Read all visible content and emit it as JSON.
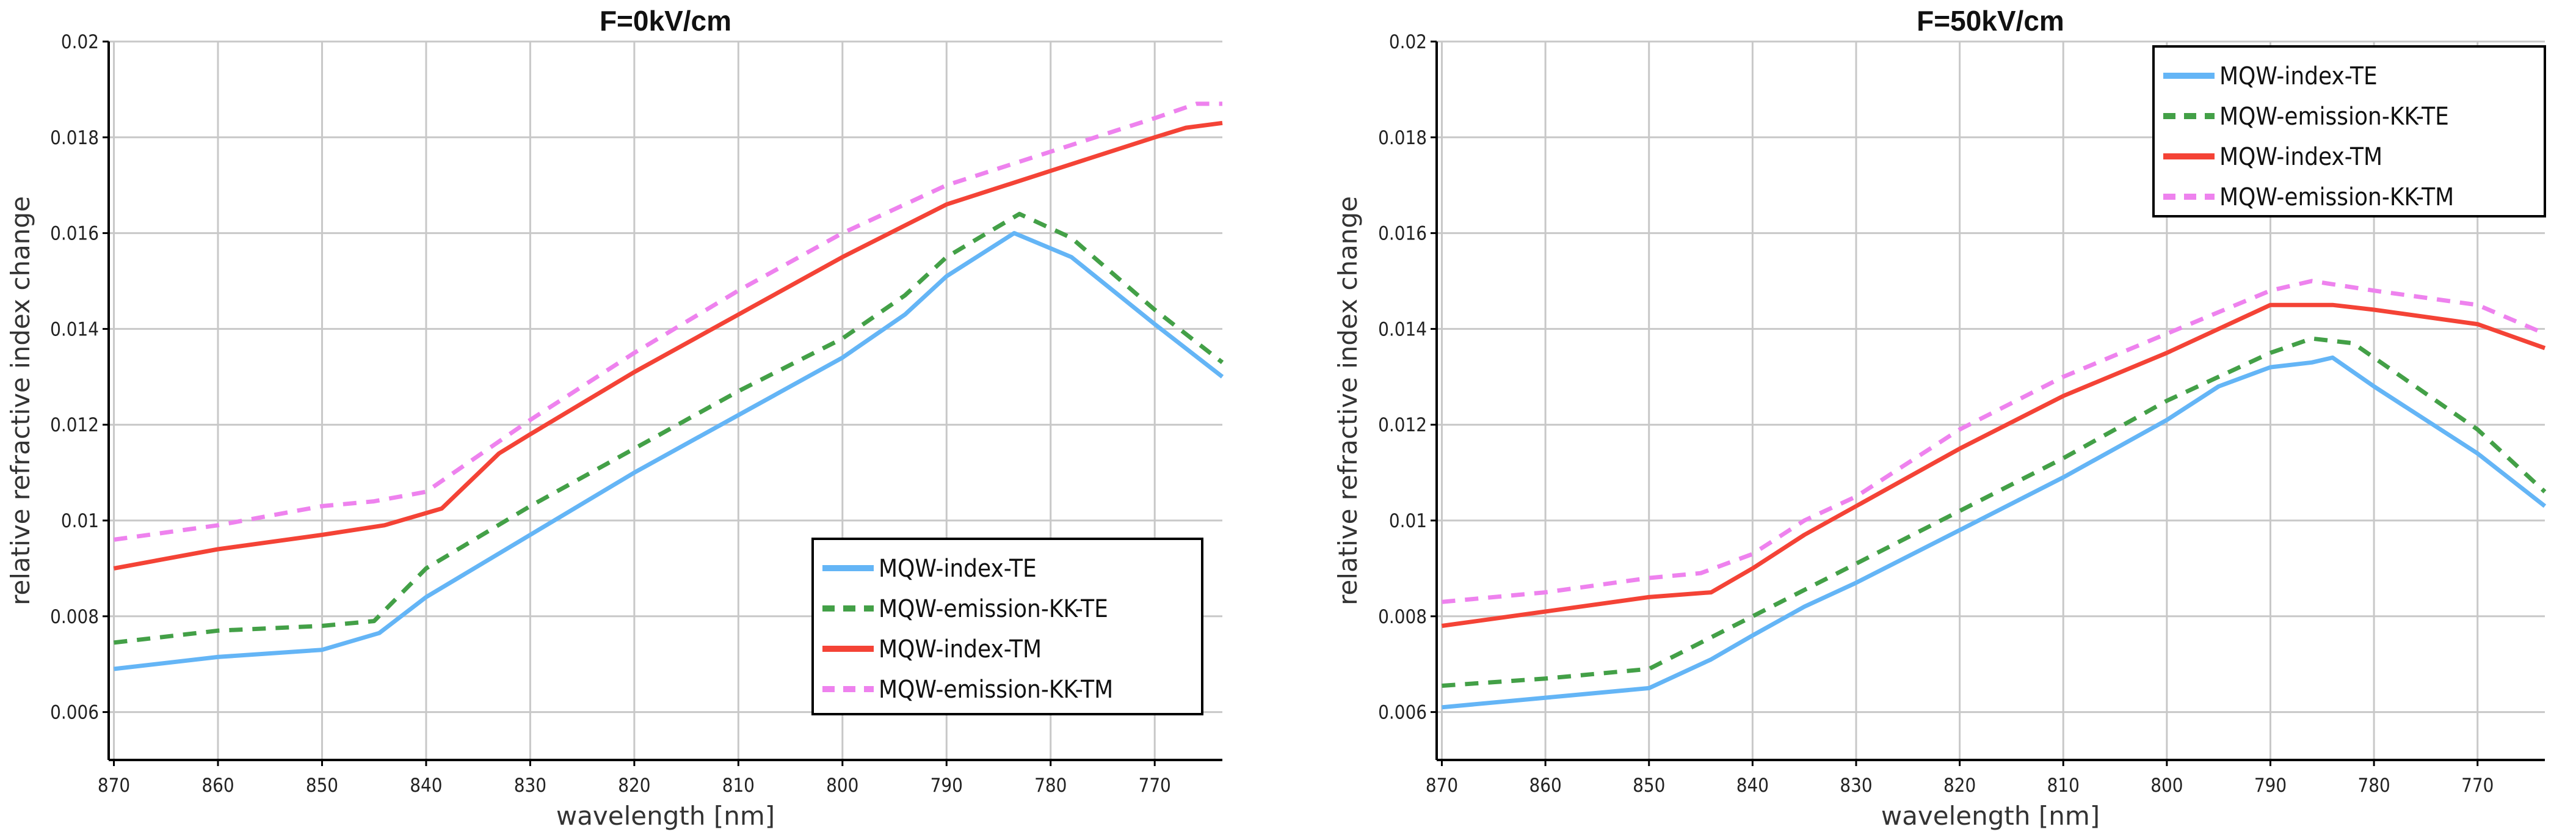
{
  "series_styles": [
    {
      "name": "MQW-index-TE",
      "color": "#64b5f6",
      "dashed": false
    },
    {
      "name": "MQW-emission-KK-TE",
      "color": "#43a047",
      "dashed": true
    },
    {
      "name": "MQW-index-TM",
      "color": "#f44336",
      "dashed": false
    },
    {
      "name": "MQW-emission-KK-TM",
      "color": "#ee82ee",
      "dashed": true
    }
  ],
  "chart_data": [
    {
      "type": "line",
      "title": "F=0kV/cm",
      "xlabel": "wavelength [nm]",
      "ylabel": "relative refractive index change",
      "xlim": [
        870.5,
        763.5
      ],
      "ylim": [
        0.005,
        0.02
      ],
      "x_reversed": true,
      "xticks": [
        870,
        860,
        850,
        840,
        830,
        820,
        810,
        800,
        790,
        780,
        770
      ],
      "yticks": [
        0.006,
        0.008,
        0.01,
        0.012,
        0.014,
        0.016,
        0.018,
        0.02
      ],
      "ytick_labels": [
        "0.006",
        "0.008",
        "0.01",
        "0.012",
        "0.014",
        "0.016",
        "0.018",
        "0.02"
      ],
      "grid": true,
      "legend": "bottom-right",
      "series": [
        {
          "name": "MQW-index-TE",
          "points": [
            [
              870,
              0.0069
            ],
            [
              860,
              0.00715
            ],
            [
              850,
              0.0073
            ],
            [
              844.5,
              0.00765
            ],
            [
              840,
              0.0084
            ],
            [
              830,
              0.0097
            ],
            [
              820,
              0.011
            ],
            [
              810,
              0.0122
            ],
            [
              800,
              0.0134
            ],
            [
              794,
              0.0143
            ],
            [
              790,
              0.0151
            ],
            [
              783.5,
              0.016
            ],
            [
              778,
              0.0155
            ],
            [
              770,
              0.0141
            ],
            [
              763.5,
              0.013
            ]
          ]
        },
        {
          "name": "MQW-emission-KK-TE",
          "points": [
            [
              870,
              0.00745
            ],
            [
              860,
              0.0077
            ],
            [
              850,
              0.0078
            ],
            [
              845,
              0.0079
            ],
            [
              840,
              0.009
            ],
            [
              830,
              0.0103
            ],
            [
              820,
              0.0115
            ],
            [
              810,
              0.0127
            ],
            [
              800,
              0.0138
            ],
            [
              794,
              0.0147
            ],
            [
              790,
              0.0155
            ],
            [
              783,
              0.0164
            ],
            [
              778,
              0.0159
            ],
            [
              770,
              0.0144
            ],
            [
              763.5,
              0.0133
            ]
          ]
        },
        {
          "name": "MQW-index-TM",
          "points": [
            [
              870,
              0.009
            ],
            [
              860,
              0.0094
            ],
            [
              850,
              0.0097
            ],
            [
              844,
              0.0099
            ],
            [
              838.5,
              0.01025
            ],
            [
              833,
              0.0114
            ],
            [
              830,
              0.0118
            ],
            [
              820,
              0.0131
            ],
            [
              810,
              0.0143
            ],
            [
              800,
              0.0155
            ],
            [
              790,
              0.0166
            ],
            [
              780,
              0.0173
            ],
            [
              770,
              0.018
            ],
            [
              767,
              0.0182
            ],
            [
              763.5,
              0.0183
            ]
          ]
        },
        {
          "name": "MQW-emission-KK-TM",
          "points": [
            [
              870,
              0.0096
            ],
            [
              860,
              0.0099
            ],
            [
              850,
              0.0103
            ],
            [
              845,
              0.0104
            ],
            [
              840,
              0.0106
            ],
            [
              830,
              0.0121
            ],
            [
              820,
              0.0135
            ],
            [
              810,
              0.0148
            ],
            [
              800,
              0.016
            ],
            [
              790,
              0.017
            ],
            [
              780,
              0.0177
            ],
            [
              770,
              0.0184
            ],
            [
              766,
              0.0187
            ],
            [
              763.5,
              0.0187
            ]
          ]
        }
      ]
    },
    {
      "type": "line",
      "title": "F=50kV/cm",
      "xlabel": "wavelength [nm]",
      "ylabel": "relative refractive index change",
      "xlim": [
        870.5,
        763.5
      ],
      "ylim": [
        0.005,
        0.02
      ],
      "x_reversed": true,
      "xticks": [
        870,
        860,
        850,
        840,
        830,
        820,
        810,
        800,
        790,
        780,
        770
      ],
      "yticks": [
        0.006,
        0.008,
        0.01,
        0.012,
        0.014,
        0.016,
        0.018,
        0.02
      ],
      "ytick_labels": [
        "0.006",
        "0.008",
        "0.01",
        "0.012",
        "0.014",
        "0.016",
        "0.018",
        "0.02"
      ],
      "grid": true,
      "legend": "top-right",
      "series": [
        {
          "name": "MQW-index-TE",
          "points": [
            [
              870,
              0.0061
            ],
            [
              860,
              0.0063
            ],
            [
              850,
              0.0065
            ],
            [
              844,
              0.0071
            ],
            [
              840,
              0.0076
            ],
            [
              835,
              0.0082
            ],
            [
              830,
              0.0087
            ],
            [
              820,
              0.0098
            ],
            [
              810,
              0.0109
            ],
            [
              805,
              0.0115
            ],
            [
              800,
              0.0121
            ],
            [
              795,
              0.0128
            ],
            [
              790,
              0.0132
            ],
            [
              786,
              0.0133
            ],
            [
              784,
              0.0134
            ],
            [
              780,
              0.0128
            ],
            [
              770,
              0.0114
            ],
            [
              763.5,
              0.0103
            ]
          ]
        },
        {
          "name": "MQW-emission-KK-TE",
          "points": [
            [
              870,
              0.00655
            ],
            [
              860,
              0.0067
            ],
            [
              850,
              0.0069
            ],
            [
              840,
              0.008
            ],
            [
              830,
              0.0091
            ],
            [
              820,
              0.0102
            ],
            [
              810,
              0.0113
            ],
            [
              800,
              0.0125
            ],
            [
              790,
              0.0135
            ],
            [
              786,
              0.0138
            ],
            [
              782,
              0.0137
            ],
            [
              770,
              0.0119
            ],
            [
              763.5,
              0.0106
            ]
          ]
        },
        {
          "name": "MQW-index-TM",
          "points": [
            [
              870,
              0.0078
            ],
            [
              860,
              0.0081
            ],
            [
              850,
              0.0084
            ],
            [
              844,
              0.0085
            ],
            [
              840,
              0.009
            ],
            [
              835,
              0.0097
            ],
            [
              830,
              0.0103
            ],
            [
              820,
              0.0115
            ],
            [
              810,
              0.0126
            ],
            [
              800,
              0.0135
            ],
            [
              790,
              0.0145
            ],
            [
              784,
              0.0145
            ],
            [
              780,
              0.0144
            ],
            [
              770,
              0.0141
            ],
            [
              763.5,
              0.0136
            ]
          ]
        },
        {
          "name": "MQW-emission-KK-TM",
          "points": [
            [
              870,
              0.0083
            ],
            [
              860,
              0.0085
            ],
            [
              850,
              0.0088
            ],
            [
              845,
              0.0089
            ],
            [
              840,
              0.0093
            ],
            [
              835,
              0.01
            ],
            [
              830,
              0.0105
            ],
            [
              820,
              0.0119
            ],
            [
              810,
              0.013
            ],
            [
              800,
              0.0139
            ],
            [
              790,
              0.0148
            ],
            [
              786,
              0.015
            ],
            [
              780,
              0.0148
            ],
            [
              770,
              0.0145
            ],
            [
              763.5,
              0.0139
            ]
          ]
        }
      ]
    }
  ]
}
